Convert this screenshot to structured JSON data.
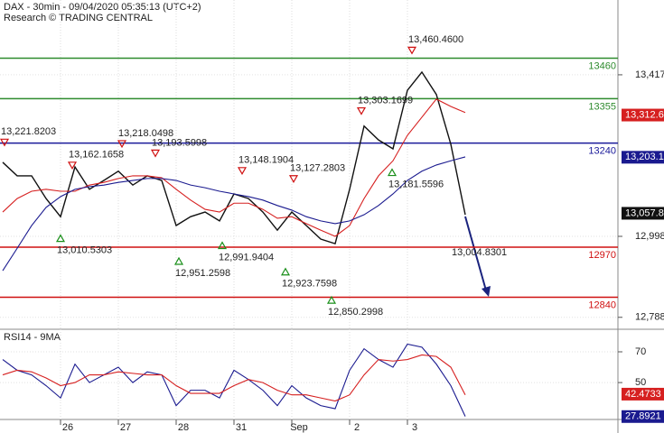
{
  "chart_data": [
    {
      "type": "line",
      "title": "DAX - 30min - 09/04/2020 05:35:13 (UTC+2)",
      "subtitle": "Research © TRADING CENTRAL",
      "categories": [
        null,
        null,
        null,
        null,
        "26",
        null,
        null,
        null,
        "27",
        null,
        null,
        null,
        "28",
        null,
        null,
        null,
        "31",
        null,
        null,
        null,
        "Sep",
        null,
        null,
        null,
        "2",
        null,
        null,
        null,
        "3",
        null,
        null,
        null,
        null
      ],
      "series": [
        {
          "color": "#111111",
          "values": [
            13190,
            13155,
            13155,
            13096,
            13049,
            13178,
            13120,
            13143,
            13167,
            13131,
            13155,
            13143,
            13026,
            13049,
            13061,
            13038,
            13108,
            13096,
            13061,
            13014,
            13061,
            13026,
            12991,
            12979,
            13120,
            13284,
            13248,
            13225,
            13377,
            13424,
            13366,
            13237,
            13054
          ]
        },
        {
          "color": "#d62020",
          "values": [
            13061,
            13096,
            13115,
            13120,
            13115,
            13115,
            13131,
            13138,
            13148,
            13155,
            13155,
            13150,
            13120,
            13092,
            13068,
            13061,
            13084,
            13084,
            13068,
            13045,
            13049,
            13031,
            13014,
            12998,
            13026,
            13096,
            13155,
            13194,
            13260,
            13307,
            13354,
            13335,
            13319
          ]
        },
        {
          "color": "#1a1a8f",
          "values": [
            12909,
            12967,
            13026,
            13073,
            13101,
            13120,
            13127,
            13131,
            13138,
            13143,
            13148,
            13148,
            13143,
            13131,
            13124,
            13115,
            13108,
            13101,
            13092,
            13078,
            13066,
            13049,
            13038,
            13031,
            13038,
            13054,
            13078,
            13108,
            13143,
            13167,
            13183,
            13194,
            13204
          ]
        }
      ],
      "ylim": [
        12757,
        13611
      ],
      "yticks": [
        {
          "value": 12788,
          "label": "12,788"
        },
        {
          "value": 12998,
          "label": "12,998"
        },
        {
          "value": 13417,
          "label": "13,417"
        }
      ],
      "grid": true,
      "levels": [
        {
          "value": 13460,
          "color": "#2e8b2e"
        },
        {
          "value": 13355,
          "color": "#2e8b2e"
        },
        {
          "value": 13240,
          "color": "#1a1a9a"
        },
        {
          "value": 12970,
          "color": "#d01010"
        },
        {
          "value": 12840,
          "color": "#d01010"
        }
      ],
      "annotations": [
        {
          "value": 13221.8203,
          "label": "13,221.8203",
          "kind": "high"
        },
        {
          "value": 13162.1658,
          "label": "13,162.1658",
          "kind": "high"
        },
        {
          "value": 13218.0498,
          "label": "13,218.0498",
          "kind": "high"
        },
        {
          "value": 13193.5998,
          "label": "13,193.5998",
          "kind": "high"
        },
        {
          "value": 13010.5303,
          "label": "13,010.5303",
          "kind": "low"
        },
        {
          "value": 12951.2598,
          "label": "12,951.2598",
          "kind": "low"
        },
        {
          "value": 12991.9404,
          "label": "12,991.9404",
          "kind": "low"
        },
        {
          "value": 13148.1904,
          "label": "13,148.1904",
          "kind": "high"
        },
        {
          "value": 13127.2803,
          "label": "13,127.2803",
          "kind": "high"
        },
        {
          "value": 12923.7598,
          "label": "12,923.7598",
          "kind": "low"
        },
        {
          "value": 12850.2998,
          "label": "12,850.2998",
          "kind": "low"
        },
        {
          "value": 13303.1699,
          "label": "13,303.1699",
          "kind": "high"
        },
        {
          "value": 13181.5596,
          "label": "13,181.5596",
          "kind": "low"
        },
        {
          "value": 13460.46,
          "label": "13,460.4600",
          "kind": "high"
        },
        {
          "value": 13004.8301,
          "label": "13,004.8301",
          "kind": "low"
        }
      ],
      "price_tags": [
        {
          "value": 13312.6,
          "label": "13,312.6",
          "color": "#d62020"
        },
        {
          "value": 13203.1,
          "label": "13,203.1",
          "color": "#1a1a8f"
        },
        {
          "value": 13057.8,
          "label": "13,057.8",
          "color": "#111111"
        }
      ]
    },
    {
      "type": "line",
      "title": "RSI14 - 9MA",
      "series": [
        {
          "color": "#1a1a8f",
          "values": [
            65,
            58,
            55,
            48,
            40,
            62,
            50,
            55,
            60,
            50,
            57,
            55,
            35,
            45,
            45,
            40,
            58,
            52,
            45,
            35,
            48,
            40,
            35,
            33,
            58,
            72,
            65,
            60,
            75,
            73,
            62,
            48,
            28
          ]
        },
        {
          "color": "#d62020",
          "values": [
            55,
            58,
            57,
            53,
            48,
            50,
            55,
            55,
            57,
            56,
            55,
            55,
            48,
            43,
            43,
            43,
            48,
            52,
            50,
            45,
            42,
            42,
            40,
            38,
            42,
            55,
            65,
            64,
            65,
            68,
            67,
            60,
            42
          ]
        }
      ],
      "ylim": [
        26,
        83.5
      ],
      "yticks": [
        50,
        70
      ],
      "grid": true,
      "price_tags": [
        {
          "value": 42.4733,
          "color": "#d62020"
        },
        {
          "value": 27.8921,
          "color": "#1a1a8f"
        }
      ]
    }
  ]
}
